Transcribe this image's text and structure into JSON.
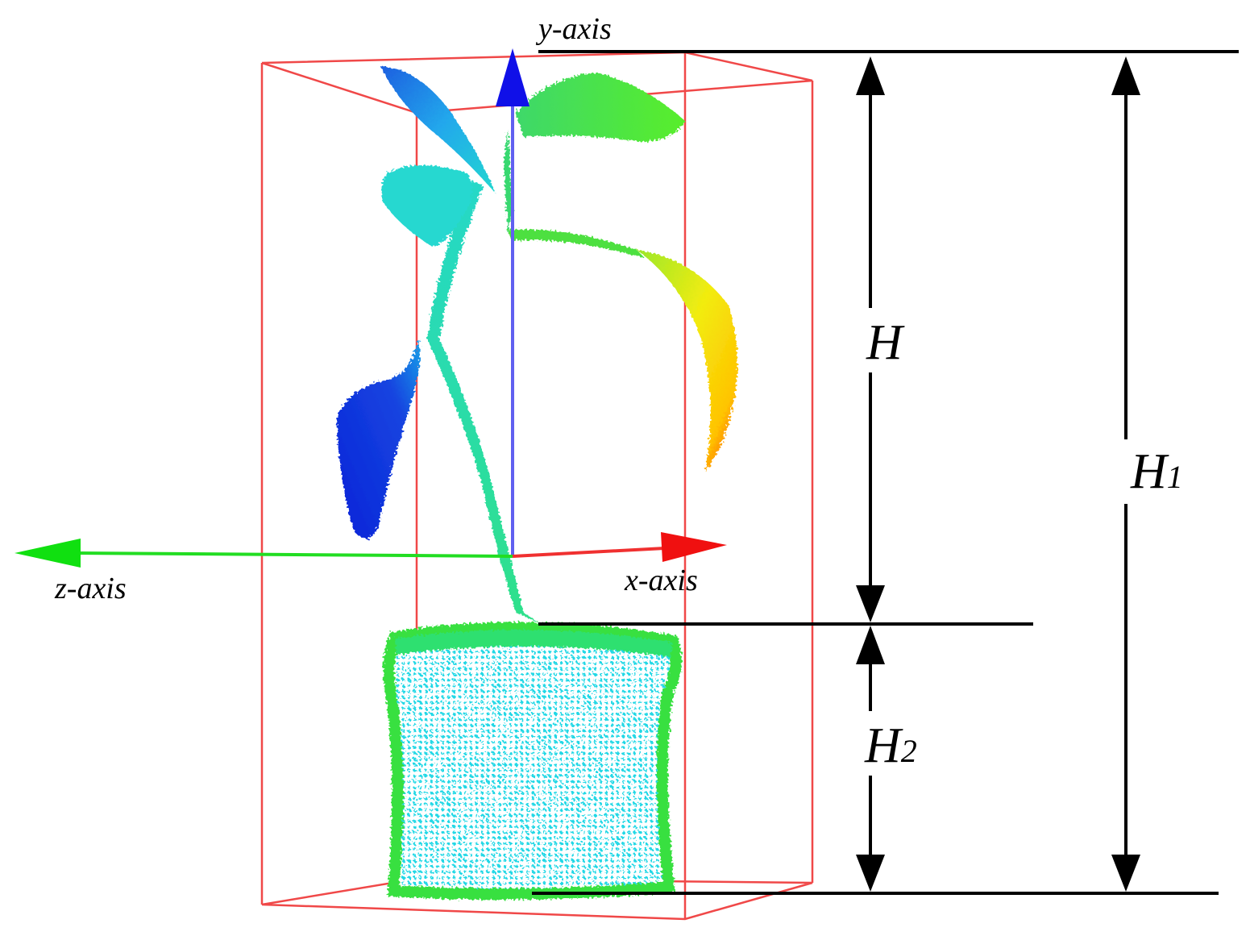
{
  "axes": {
    "y": "y-axis",
    "z": "z-axis",
    "x": "x-axis"
  },
  "dimensions": {
    "h": {
      "base": "H"
    },
    "h1": {
      "base": "H",
      "subscript": "1"
    },
    "h2": {
      "base": "H",
      "subscript": "2"
    }
  }
}
